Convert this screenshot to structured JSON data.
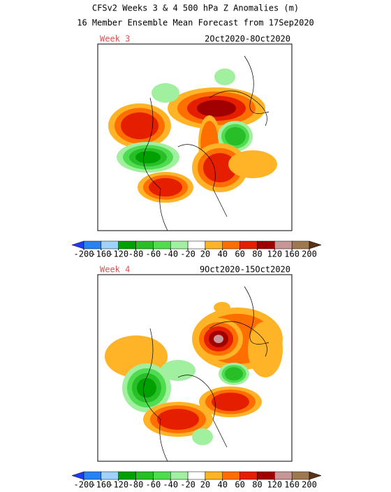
{
  "title": [
    "CFSv2 Weeks 3 & 4 500 hPa Z Anomalies (m)",
    "16 Member Ensemble Mean Forecast from 17Sep2020"
  ],
  "panels": [
    {
      "label": "Week 3",
      "dates": "2Oct2020-8Oct2020"
    },
    {
      "label": "Week 4",
      "dates": "9Oct2020-15Oct2020"
    }
  ],
  "colorbar": {
    "ticks": [
      -200,
      -160,
      -120,
      -80,
      -60,
      -40,
      -20,
      20,
      40,
      60,
      80,
      120,
      160,
      200
    ],
    "colors": [
      "#1e3cff",
      "#2882f0",
      "#a0d2ff",
      "#00a000",
      "#28be28",
      "#50dc50",
      "#a0f0a0",
      "#ffffff",
      "#ffb428",
      "#ff6e00",
      "#e61e00",
      "#a00000",
      "#c89696",
      "#a07850",
      "#5a3214"
    ]
  }
}
